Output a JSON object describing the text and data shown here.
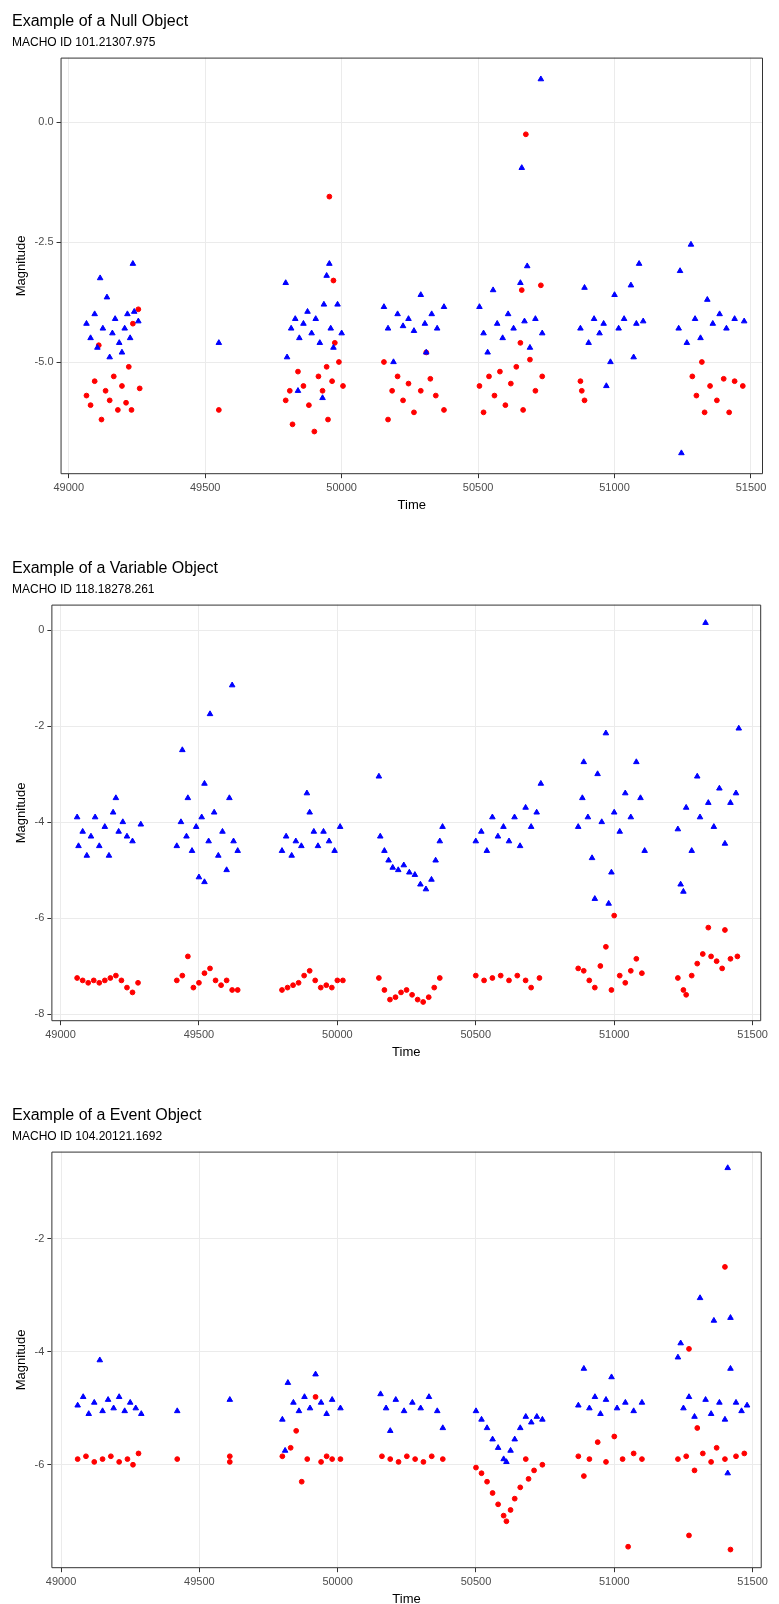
{
  "chart_data": [
    {
      "type": "scatter",
      "title": "Example of a Null Object",
      "subtitle": "MACHO ID 101.21307.975",
      "xlabel": "Time",
      "ylabel": "Magnitude",
      "xlim": [
        48970,
        51544
      ],
      "ylim": [
        -7.34,
        1.35
      ],
      "xticks": [
        49000,
        49500,
        50000,
        50500,
        51000,
        51500
      ],
      "yticks": [
        {
          "value": 0,
          "label": "0.0"
        },
        {
          "value": -2.5,
          "label": "-2.5"
        },
        {
          "value": -5,
          "label": "-5.0"
        }
      ],
      "grid": true,
      "legend": false,
      "series": [
        {
          "color": "#0000ff",
          "marker": "triangle",
          "x": [
            49065,
            49080,
            49095,
            49105,
            49115,
            49125,
            49140,
            49150,
            49160,
            49170,
            49185,
            49195,
            49205,
            49215,
            49225,
            49235,
            49240,
            49255,
            49550,
            49795,
            49800,
            49815,
            49830,
            49845,
            49860,
            49875,
            49890,
            49905,
            49920,
            49935,
            49945,
            49955,
            49960,
            49970,
            49985,
            50000,
            49840,
            49930,
            50155,
            50170,
            50190,
            50205,
            50225,
            50245,
            50265,
            50290,
            50305,
            50310,
            50330,
            50350,
            50375,
            50505,
            50520,
            50535,
            50555,
            50570,
            50590,
            50610,
            50630,
            50655,
            50660,
            50670,
            50680,
            50690,
            50710,
            50730,
            50735,
            50875,
            50890,
            50905,
            50925,
            50945,
            50960,
            50970,
            50985,
            51000,
            51015,
            51035,
            51060,
            51070,
            51080,
            51090,
            51105,
            51235,
            51240,
            51245,
            51265,
            51280,
            51295,
            51315,
            51340,
            51360,
            51385,
            51410,
            51440,
            51475
          ],
          "values": [
            -4.2,
            -4.5,
            -4.0,
            -4.7,
            -3.25,
            -4.3,
            -3.65,
            -4.9,
            -4.4,
            -4.1,
            -4.6,
            -4.8,
            -4.3,
            -4.0,
            -4.5,
            -2.95,
            -3.95,
            -4.15,
            -4.6,
            -3.35,
            -4.9,
            -4.3,
            -4.1,
            -4.5,
            -4.2,
            -3.95,
            -4.4,
            -4.1,
            -4.6,
            -3.8,
            -3.2,
            -2.95,
            -4.3,
            -4.7,
            -3.8,
            -4.4,
            -5.6,
            -5.75,
            -3.85,
            -4.3,
            -5.0,
            -4.0,
            -4.25,
            -4.1,
            -4.35,
            -3.6,
            -4.2,
            -4.8,
            -4.0,
            -4.3,
            -3.85,
            -3.85,
            -4.4,
            -4.8,
            -3.5,
            -4.2,
            -4.5,
            -4.0,
            -4.3,
            -3.35,
            -0.95,
            -4.15,
            -3.0,
            -4.7,
            -4.1,
            0.9,
            -4.4,
            -4.3,
            -3.45,
            -4.6,
            -4.1,
            -4.4,
            -4.2,
            -5.5,
            -5.0,
            -3.6,
            -4.3,
            -4.1,
            -3.4,
            -4.9,
            -4.2,
            -2.95,
            -4.15,
            -4.3,
            -3.1,
            -6.9,
            -4.6,
            -2.55,
            -4.1,
            -4.5,
            -3.7,
            -4.2,
            -4.0,
            -4.3,
            -4.1,
            -4.15
          ]
        },
        {
          "color": "#ff0000",
          "marker": "circle",
          "x": [
            49065,
            49080,
            49095,
            49110,
            49120,
            49135,
            49150,
            49165,
            49180,
            49195,
            49210,
            49220,
            49230,
            49235,
            49255,
            49260,
            49550,
            49795,
            49810,
            49820,
            49840,
            49860,
            49880,
            49900,
            49915,
            49930,
            49945,
            49955,
            49950,
            49965,
            49970,
            49975,
            49990,
            50005,
            50155,
            50170,
            50185,
            50205,
            50225,
            50245,
            50265,
            50290,
            50310,
            50325,
            50345,
            50375,
            50505,
            50520,
            50540,
            50560,
            50580,
            50600,
            50620,
            50640,
            50655,
            50660,
            50665,
            50675,
            50690,
            50710,
            50730,
            50735,
            50875,
            50880,
            50890,
            51285,
            51300,
            51320,
            51330,
            51350,
            51375,
            51400,
            51420,
            51440,
            51470
          ],
          "values": [
            -5.7,
            -5.9,
            -5.4,
            -4.65,
            -6.2,
            -5.6,
            -5.8,
            -5.3,
            -6.0,
            -5.5,
            -5.85,
            -5.1,
            -6.0,
            -4.2,
            -3.9,
            -5.55,
            -6.0,
            -5.8,
            -5.6,
            -6.3,
            -5.2,
            -5.5,
            -5.9,
            -6.45,
            -5.3,
            -5.6,
            -5.1,
            -1.55,
            -6.2,
            -5.4,
            -3.3,
            -4.6,
            -5.0,
            -5.5,
            -5.0,
            -6.2,
            -5.6,
            -5.3,
            -5.8,
            -5.45,
            -6.05,
            -5.6,
            -4.8,
            -5.35,
            -5.7,
            -6.0,
            -5.5,
            -6.05,
            -5.3,
            -5.7,
            -5.2,
            -5.9,
            -5.45,
            -5.1,
            -4.6,
            -3.5,
            -6.0,
            -0.25,
            -4.95,
            -5.6,
            -3.4,
            -5.3,
            -5.4,
            -5.6,
            -5.8,
            -5.3,
            -5.7,
            -5.0,
            -6.05,
            -5.5,
            -5.8,
            -5.35,
            -6.05,
            -5.4,
            -5.5
          ]
        }
      ]
    },
    {
      "type": "scatter",
      "title": "Example of a Variable Object",
      "subtitle": "MACHO ID 118.18278.261",
      "xlabel": "Time",
      "ylabel": "Magnitude",
      "xlim": [
        48967,
        51531
      ],
      "ylim": [
        -8.15,
        0.53
      ],
      "xticks": [
        49000,
        49500,
        50000,
        50500,
        51000,
        51500
      ],
      "yticks": [
        0,
        -2,
        -4,
        -6,
        -8
      ],
      "grid": true,
      "legend": false,
      "series": [
        {
          "color": "#0000ff",
          "marker": "triangle",
          "x": [
            49060,
            49065,
            49080,
            49095,
            49110,
            49125,
            49140,
            49160,
            49175,
            49190,
            49200,
            49210,
            49225,
            49240,
            49260,
            49290,
            49420,
            49435,
            49440,
            49455,
            49460,
            49475,
            49490,
            49500,
            49510,
            49520,
            49520,
            49535,
            49540,
            49555,
            49570,
            49585,
            49600,
            49610,
            49620,
            49625,
            49640,
            49800,
            49815,
            49835,
            49850,
            49870,
            49890,
            49900,
            49915,
            49930,
            49950,
            49970,
            49990,
            50010,
            50150,
            50155,
            50170,
            50185,
            50200,
            50220,
            50240,
            50260,
            50280,
            50300,
            50320,
            50340,
            50355,
            50370,
            50380,
            50500,
            50520,
            50540,
            50560,
            50580,
            50600,
            50620,
            50640,
            50660,
            50680,
            50700,
            50720,
            50735,
            50870,
            50885,
            50890,
            50905,
            50920,
            50930,
            50940,
            50955,
            50970,
            50980,
            50990,
            51000,
            51020,
            51040,
            51060,
            51080,
            51095,
            51110,
            51230,
            51240,
            51250,
            51260,
            51280,
            51300,
            51310,
            51330,
            51340,
            51360,
            51380,
            51400,
            51420,
            51440,
            51450
          ],
          "values": [
            -3.9,
            -4.5,
            -4.2,
            -4.7,
            -4.3,
            -3.9,
            -4.5,
            -4.1,
            -4.7,
            -3.8,
            -3.5,
            -4.2,
            -4.0,
            -4.3,
            -4.4,
            -4.05,
            -4.5,
            -4.0,
            -2.5,
            -4.3,
            -3.5,
            -4.6,
            -4.1,
            -5.15,
            -3.9,
            -3.2,
            -5.25,
            -4.4,
            -1.75,
            -3.8,
            -4.7,
            -4.2,
            -5.0,
            -3.5,
            -1.15,
            -4.4,
            -4.6,
            -4.6,
            -4.3,
            -4.7,
            -4.4,
            -4.5,
            -3.4,
            -3.8,
            -4.2,
            -4.5,
            -4.2,
            -4.4,
            -4.6,
            -4.1,
            -3.05,
            -4.3,
            -4.6,
            -4.8,
            -4.95,
            -5.0,
            -4.9,
            -5.05,
            -5.1,
            -5.3,
            -5.4,
            -5.2,
            -4.8,
            -4.4,
            -4.1,
            -4.4,
            -4.2,
            -4.6,
            -3.9,
            -4.3,
            -4.1,
            -4.4,
            -3.9,
            -4.5,
            -3.7,
            -4.1,
            -3.8,
            -3.2,
            -4.1,
            -3.5,
            -2.75,
            -3.9,
            -4.75,
            -5.6,
            -3.0,
            -4.0,
            -2.15,
            -5.7,
            -5.05,
            -3.8,
            -4.2,
            -3.4,
            -3.9,
            -2.75,
            -3.5,
            -4.6,
            -4.15,
            -5.3,
            -5.45,
            -3.7,
            -4.6,
            -3.05,
            -3.9,
            0.15,
            -3.6,
            -4.1,
            -3.3,
            -4.45,
            -3.6,
            -3.4,
            -2.05
          ]
        },
        {
          "color": "#ff0000",
          "marker": "circle",
          "x": [
            49060,
            49080,
            49100,
            49120,
            49140,
            49160,
            49180,
            49200,
            49220,
            49240,
            49260,
            49280,
            49420,
            49440,
            49460,
            49480,
            49500,
            49520,
            49540,
            49560,
            49580,
            49600,
            49620,
            49640,
            49800,
            49820,
            49840,
            49860,
            49880,
            49900,
            49920,
            49940,
            49960,
            49980,
            50000,
            50020,
            50150,
            50170,
            50190,
            50210,
            50230,
            50250,
            50270,
            50290,
            50310,
            50330,
            50350,
            50370,
            50500,
            50530,
            50560,
            50590,
            50620,
            50650,
            50680,
            50700,
            50730,
            50870,
            50890,
            50910,
            50930,
            50950,
            50970,
            50990,
            51000,
            51020,
            51040,
            51060,
            51080,
            51100,
            51230,
            51250,
            51260,
            51280,
            51300,
            51320,
            51340,
            51350,
            51370,
            51390,
            51400,
            51420,
            51445
          ],
          "values": [
            -7.25,
            -7.3,
            -7.35,
            -7.3,
            -7.35,
            -7.3,
            -7.25,
            -7.2,
            -7.3,
            -7.45,
            -7.55,
            -7.35,
            -7.3,
            -7.2,
            -6.8,
            -7.45,
            -7.35,
            -7.15,
            -7.05,
            -7.3,
            -7.4,
            -7.3,
            -7.5,
            -7.5,
            -7.5,
            -7.45,
            -7.4,
            -7.35,
            -7.2,
            -7.1,
            -7.3,
            -7.45,
            -7.4,
            -7.45,
            -7.3,
            -7.3,
            -7.25,
            -7.5,
            -7.7,
            -7.65,
            -7.55,
            -7.5,
            -7.6,
            -7.7,
            -7.75,
            -7.65,
            -7.45,
            -7.25,
            -7.2,
            -7.3,
            -7.25,
            -7.2,
            -7.3,
            -7.2,
            -7.3,
            -7.45,
            -7.25,
            -7.05,
            -7.1,
            -7.3,
            -7.45,
            -7.0,
            -6.6,
            -7.5,
            -5.95,
            -7.2,
            -7.35,
            -7.1,
            -6.85,
            -7.15,
            -7.25,
            -7.5,
            -7.6,
            -7.2,
            -6.95,
            -6.75,
            -6.2,
            -6.8,
            -6.9,
            -7.05,
            -6.25,
            -6.85,
            -6.8
          ]
        }
      ]
    },
    {
      "type": "scatter",
      "title": "Example of a Event Object",
      "subtitle": "MACHO ID 104.20121.1692",
      "xlabel": "Time",
      "ylabel": "Magnitude",
      "xlim": [
        48965,
        51533
      ],
      "ylim": [
        -7.83,
        -0.46
      ],
      "xticks": [
        49000,
        49500,
        50000,
        50500,
        51000,
        51500
      ],
      "yticks": [
        -2,
        -4,
        -6
      ],
      "grid": true,
      "legend": false,
      "series": [
        {
          "color": "#0000ff",
          "marker": "triangle",
          "x": [
            49060,
            49080,
            49100,
            49120,
            49140,
            49150,
            49170,
            49190,
            49210,
            49230,
            49250,
            49270,
            49290,
            49420,
            49610,
            49800,
            49810,
            49820,
            49840,
            49860,
            49880,
            49900,
            49920,
            49940,
            49960,
            49980,
            50010,
            50155,
            50175,
            50190,
            50210,
            50240,
            50270,
            50300,
            50330,
            50360,
            50380,
            50500,
            50520,
            50540,
            50560,
            50580,
            50600,
            50610,
            50625,
            50640,
            50660,
            50680,
            50700,
            50720,
            50740,
            50870,
            50890,
            50910,
            50930,
            50950,
            50970,
            50990,
            51010,
            51040,
            51070,
            51100,
            51230,
            51240,
            51250,
            51270,
            51290,
            51310,
            51330,
            51350,
            51360,
            51380,
            51400,
            51410,
            51410,
            51420,
            51420,
            51440,
            51460,
            51480
          ],
          "values": [
            -4.95,
            -4.8,
            -5.1,
            -4.9,
            -4.15,
            -5.05,
            -4.85,
            -5.0,
            -4.8,
            -5.05,
            -4.9,
            -5.0,
            -5.1,
            -5.05,
            -4.85,
            -5.2,
            -5.75,
            -4.55,
            -4.9,
            -5.05,
            -4.8,
            -5.0,
            -4.4,
            -4.9,
            -5.1,
            -4.85,
            -5.0,
            -4.75,
            -5.0,
            -5.4,
            -4.85,
            -5.05,
            -4.9,
            -5.0,
            -4.8,
            -5.05,
            -5.35,
            -5.05,
            -5.2,
            -5.35,
            -5.55,
            -5.7,
            -5.9,
            -5.95,
            -5.75,
            -5.55,
            -5.35,
            -5.15,
            -5.25,
            -5.15,
            -5.2,
            -4.95,
            -4.3,
            -5.0,
            -4.8,
            -5.1,
            -4.85,
            -4.45,
            -5.0,
            -4.9,
            -5.05,
            -4.9,
            -4.1,
            -3.85,
            -5.0,
            -4.8,
            -5.15,
            -3.05,
            -4.85,
            -5.1,
            -3.45,
            -4.9,
            -5.2,
            -0.75,
            -6.15,
            -3.4,
            -4.3,
            -4.9,
            -5.05,
            -4.95
          ]
        },
        {
          "color": "#ff0000",
          "marker": "circle",
          "x": [
            49060,
            49090,
            49120,
            49150,
            49180,
            49210,
            49240,
            49260,
            49280,
            49420,
            49610,
            49610,
            49800,
            49830,
            49850,
            49870,
            49890,
            49920,
            49940,
            49960,
            49980,
            50010,
            50160,
            50190,
            50220,
            50250,
            50280,
            50310,
            50340,
            50380,
            50500,
            50520,
            50540,
            50560,
            50580,
            50600,
            50610,
            50625,
            50640,
            50660,
            50680,
            50690,
            50710,
            50740,
            50870,
            50890,
            50910,
            50940,
            50970,
            51000,
            51030,
            51050,
            51070,
            51100,
            51230,
            51260,
            51270,
            51270,
            51290,
            51300,
            51320,
            51350,
            51370,
            51400,
            51400,
            51420,
            51440,
            51470
          ],
          "values": [
            -5.9,
            -5.85,
            -5.95,
            -5.9,
            -5.85,
            -5.95,
            -5.9,
            -6.0,
            -5.8,
            -5.9,
            -5.85,
            -5.95,
            -5.85,
            -5.7,
            -5.4,
            -6.3,
            -5.9,
            -4.8,
            -5.95,
            -5.85,
            -5.9,
            -5.9,
            -5.85,
            -5.9,
            -5.95,
            -5.85,
            -5.9,
            -5.95,
            -5.85,
            -5.9,
            -6.05,
            -6.15,
            -6.3,
            -6.5,
            -6.7,
            -6.9,
            -7.0,
            -6.8,
            -6.6,
            -6.4,
            -5.9,
            -6.25,
            -6.1,
            -6.0,
            -5.85,
            -6.2,
            -5.9,
            -5.6,
            -5.95,
            -5.5,
            -5.9,
            -7.45,
            -5.8,
            -5.9,
            -5.9,
            -5.85,
            -3.95,
            -7.25,
            -6.1,
            -5.35,
            -5.8,
            -5.95,
            -5.7,
            -2.5,
            -5.9,
            -7.5,
            -5.85,
            -5.8
          ]
        }
      ]
    }
  ]
}
